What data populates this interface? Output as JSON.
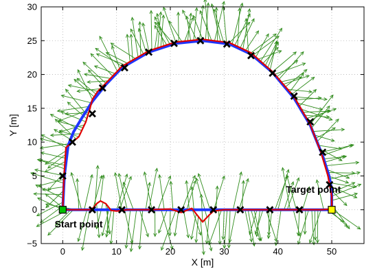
{
  "chart_data": {
    "type": "line",
    "xlabel": "X [m]",
    "ylabel": "Y [m]",
    "xlim": [
      -4,
      56
    ],
    "ylim": [
      -5,
      30
    ],
    "xticks": [
      0,
      10,
      20,
      30,
      40,
      50
    ],
    "yticks": [
      -5,
      0,
      5,
      10,
      15,
      20,
      25,
      30
    ],
    "grid": true,
    "annotations": [
      {
        "text": "Target point",
        "x": 41.5,
        "y": 2.5
      },
      {
        "text": "Start point",
        "x": -1.5,
        "y": -2.6
      }
    ],
    "series": [
      {
        "role": "reference_path",
        "color": "#1f35ff",
        "x": [
          0,
          0.3,
          1,
          2,
          3.5,
          5.5,
          8,
          11,
          16,
          21,
          26,
          31,
          35,
          39,
          43,
          46,
          48.3,
          49.5,
          50,
          50,
          50,
          46,
          40,
          35,
          30,
          25,
          20,
          15,
          10,
          5,
          0
        ],
        "y": [
          0,
          5,
          9.5,
          11.5,
          13.5,
          16,
          18.5,
          21,
          23.3,
          24.6,
          25,
          24.5,
          23,
          20.3,
          16.5,
          12.5,
          8,
          5,
          3,
          1,
          0,
          0,
          0,
          0,
          0,
          0,
          0,
          0,
          0,
          0,
          0
        ]
      },
      {
        "role": "trajectory",
        "color": "#e00000",
        "x": [
          0,
          0.2,
          0.6,
          1.5,
          3,
          4.3,
          5,
          5.5,
          6.5,
          8,
          11,
          16,
          21,
          26,
          31,
          35,
          39,
          43,
          46,
          48,
          49.3,
          50,
          50,
          48,
          44,
          40,
          35,
          30,
          28,
          27.2,
          26,
          24,
          22,
          20,
          16,
          12,
          10,
          9,
          8,
          7,
          6.3,
          5.7,
          5,
          4,
          2,
          0
        ],
        "y": [
          0,
          4.5,
          9.2,
          9.8,
          10.8,
          13,
          14.8,
          16.3,
          17.5,
          18.7,
          21.2,
          23.5,
          24.8,
          25.2,
          24.7,
          23.2,
          20.4,
          16.7,
          12.6,
          8.5,
          5,
          2,
          0.1,
          0,
          0,
          0,
          0,
          0,
          -0.2,
          -0.8,
          -1.8,
          0.2,
          -0.4,
          0.1,
          0,
          0,
          -0.2,
          -0.1,
          0.9,
          1.3,
          0.9,
          0.3,
          0,
          0,
          0,
          0
        ]
      }
    ],
    "waypoints": {
      "marker": "x",
      "x": [
        0,
        1.8,
        5.5,
        7.4,
        11.5,
        16,
        20.7,
        25.6,
        30.5,
        35,
        39,
        43,
        46,
        48.3,
        49.6,
        5.5,
        11,
        16.5,
        22,
        28,
        33,
        38.5,
        44
      ],
      "y": [
        5,
        10,
        14.2,
        18,
        21,
        23.3,
        24.6,
        25,
        24.5,
        22.8,
        20.2,
        16.8,
        13,
        8.5,
        3.7,
        0,
        0,
        0,
        0,
        0,
        0,
        0,
        0
      ]
    },
    "start_point": {
      "x": 0,
      "y": 0,
      "color": "#00c000"
    },
    "target_point": {
      "x": 50,
      "y": 0,
      "color": "#ffff00"
    },
    "arrow_color": "#2e8b1a"
  }
}
